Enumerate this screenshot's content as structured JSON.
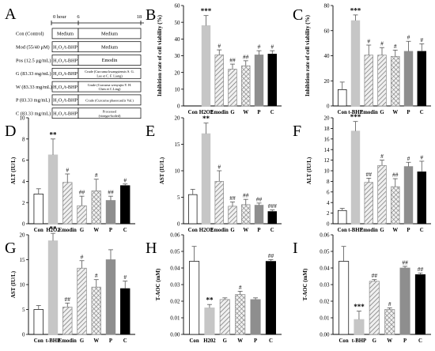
{
  "panel_a": {
    "letter": "A",
    "timeline": {
      "t0": "0 hour",
      "t6": "6",
      "t18": "18"
    },
    "rows": [
      {
        "label": "Con (Control)",
        "pre": "Medium",
        "treat": "Medium"
      },
      {
        "label": "Mod (55/40 μM)",
        "pre": "H₂O₂/t-BHP",
        "treat": "Medium"
      },
      {
        "label": "Pos (12.5 μg/mL)",
        "pre": "H₂O₂/t-BHP",
        "treat": "Emodin"
      },
      {
        "label": "G (83.33 mg/mL)",
        "pre": "H₂O₂/t-BHP",
        "treat": [
          "Crude (Curcuma kwangsiensis S. G.",
          "Lee et C. F. Liang)"
        ]
      },
      {
        "label": "W (83.33 mg/mL)",
        "pre": "H₂O₂/t-BHP",
        "treat": [
          "Crude (Curcuma wenyujin Y. H.",
          "Chen et C.Ling)"
        ]
      },
      {
        "label": "P (83.33 mg/mL)",
        "pre": "H₂O₂/t-BHP",
        "treat": "Crude (Curcuma phaeocaulis Val.)"
      },
      {
        "label": "C (83.33 mg/mL)",
        "pre": "H₂O₂/t-BHP",
        "treat": [
          "Processed",
          "(vinegar-boiled)"
        ]
      }
    ]
  },
  "chart_data": [
    {
      "panel": "B",
      "type": "bar",
      "ylabel": "Inhibition rate of cell viability (%)",
      "ylim": [
        0,
        60
      ],
      "yticks": [
        0,
        10,
        20,
        30,
        40,
        50,
        60
      ],
      "categories": [
        "Con",
        "H2O2",
        "Emodin",
        "G",
        "W",
        "P",
        "C"
      ],
      "values": [
        0,
        48,
        30.5,
        22,
        24,
        30.5,
        31
      ],
      "errors": [
        0,
        6,
        3,
        3,
        3,
        2.5,
        2
      ],
      "annotations": [
        "",
        "***",
        "#",
        "##",
        "##",
        "#",
        "#"
      ]
    },
    {
      "panel": "C",
      "type": "bar",
      "ylabel": "Inhibition rate of cell viability (%)",
      "ylim": [
        0,
        80
      ],
      "yticks": [
        0,
        20,
        40,
        60,
        80
      ],
      "categories": [
        "Con",
        "t-BHP",
        "Emodin",
        "G",
        "W",
        "P",
        "C"
      ],
      "values": [
        13,
        68,
        40.5,
        40.5,
        39.5,
        43.5,
        43.5
      ],
      "errors": [
        6,
        4.5,
        8,
        6,
        5,
        8,
        6
      ],
      "annotations": [
        "",
        "***",
        "#",
        "#",
        "#",
        "#",
        "#"
      ]
    },
    {
      "panel": "D",
      "type": "bar",
      "ylabel": "ALT (IU/L)",
      "ylim": [
        0,
        10
      ],
      "yticks": [
        0,
        2,
        4,
        6,
        8,
        10
      ],
      "categories": [
        "Con",
        "H2O2",
        "Emodin",
        "G",
        "W",
        "P",
        "C"
      ],
      "values": [
        2.8,
        6.5,
        3.9,
        1.7,
        3.1,
        2.2,
        3.6
      ],
      "errors": [
        0.5,
        1.5,
        0.8,
        0.9,
        1.1,
        0.4,
        0.15
      ],
      "annotations": [
        "",
        "**",
        "#",
        "##",
        "#",
        "##",
        "#"
      ]
    },
    {
      "panel": "E",
      "type": "bar",
      "ylabel": "AST (IU/L)",
      "ylim": [
        0,
        20
      ],
      "yticks": [
        0,
        5,
        10,
        15,
        20
      ],
      "categories": [
        "Con",
        "H2O2",
        "Emodin",
        "G",
        "W",
        "P",
        "C"
      ],
      "values": [
        5.5,
        17,
        8,
        3.3,
        3.6,
        3.5,
        2.3
      ],
      "errors": [
        1,
        2,
        2,
        0.8,
        1,
        0.4,
        0.3
      ],
      "annotations": [
        "",
        "**",
        "#",
        "##",
        "##",
        "##",
        "###"
      ]
    },
    {
      "panel": "F",
      "type": "bar",
      "ylabel": "ALT (IU/L)",
      "ylim": [
        0,
        20
      ],
      "yticks": [
        0,
        2,
        4,
        6,
        8,
        10,
        12,
        14,
        16,
        18,
        20
      ],
      "categories": [
        "Con",
        "t-BHP",
        "Emodin",
        "G",
        "W",
        "P",
        "C"
      ],
      "values": [
        2.5,
        17.5,
        7.8,
        11,
        7,
        10.8,
        9.8
      ],
      "errors": [
        0.4,
        1.8,
        0.8,
        1,
        1.5,
        0.8,
        2
      ],
      "annotations": [
        "",
        "***",
        "##",
        "#",
        "##",
        "#",
        "#"
      ]
    },
    {
      "panel": "G",
      "type": "bar",
      "ylabel": "AST (IU/L)",
      "ylim": [
        0,
        20
      ],
      "yticks": [
        0,
        5,
        10,
        15,
        20
      ],
      "categories": [
        "Con",
        "t-BHP",
        "Emodin",
        "G",
        "W",
        "P",
        "C"
      ],
      "values": [
        5,
        18.8,
        5.5,
        13.3,
        9.5,
        15,
        9.2
      ],
      "errors": [
        0.8,
        1.5,
        0.8,
        1.5,
        1.5,
        2,
        1.5
      ],
      "annotations": [
        "",
        "**",
        "##",
        "#",
        "#",
        "",
        "#"
      ]
    },
    {
      "panel": "H",
      "type": "bar",
      "ylabel": "T-AOC (mM)",
      "ylim": [
        0,
        0.06
      ],
      "yticks": [
        0,
        0.01,
        0.02,
        0.03,
        0.04,
        0.05,
        0.06
      ],
      "ytick_labels": [
        "0.00",
        "0.01",
        "0.02",
        "0.03",
        "0.04",
        "0.05",
        "0.06"
      ],
      "categories": [
        "Con",
        "H202",
        "G",
        "W",
        "P",
        "C"
      ],
      "values": [
        0.044,
        0.016,
        0.021,
        0.024,
        0.021,
        0.044
      ],
      "errors": [
        0.009,
        0.002,
        0.001,
        0.002,
        0.001,
        0.001
      ],
      "annotations": [
        "",
        "**",
        "",
        "#",
        "",
        "##"
      ]
    },
    {
      "panel": "I",
      "type": "bar",
      "ylabel": "T-AOC (mM)",
      "ylim": [
        0,
        0.06
      ],
      "yticks": [
        0,
        0.01,
        0.02,
        0.03,
        0.04,
        0.05,
        0.06
      ],
      "ytick_labels": [
        "0.00",
        "0.01",
        "0.02",
        "0.03",
        "0.04",
        "0.05",
        "0.06"
      ],
      "categories": [
        "Con",
        "t-BHP",
        "G",
        "W",
        "P",
        "C"
      ],
      "values": [
        0.044,
        0.009,
        0.032,
        0.015,
        0.04,
        0.036
      ],
      "errors": [
        0.009,
        0.005,
        0.001,
        0.001,
        0.001,
        0.001
      ],
      "annotations": [
        "",
        "***",
        "##",
        "#",
        "##",
        "##"
      ]
    }
  ]
}
